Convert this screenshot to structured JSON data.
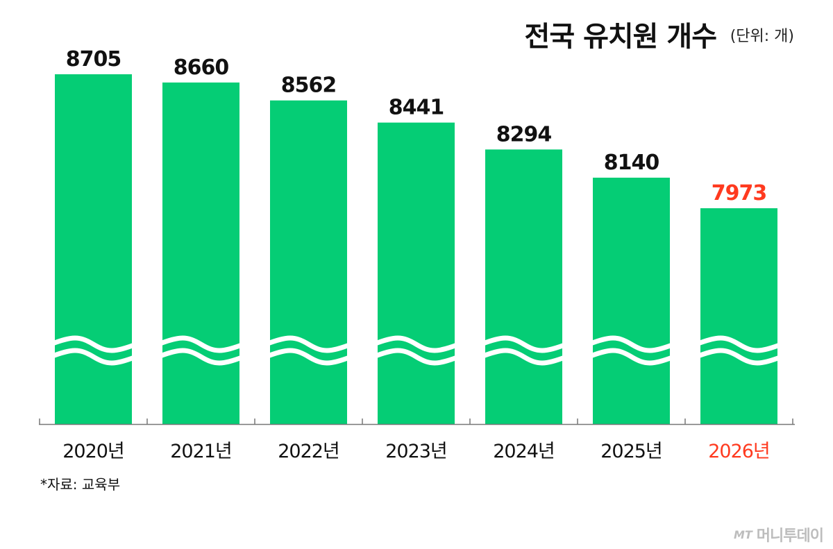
{
  "header": {
    "title": "전국 유치원 개수",
    "unit": "(단위: 개)"
  },
  "footer": {
    "source": "*자료: 교육부",
    "logo_mark": "MT",
    "logo_text": "머니투데이"
  },
  "colors": {
    "bar": "#05cd75",
    "highlight": "#ff3a1f",
    "text": "#111111",
    "axis": "#777777"
  },
  "chart_data": {
    "type": "bar",
    "categories": [
      "2020년",
      "2021년",
      "2022년",
      "2023년",
      "2024년",
      "2025년",
      "2026년"
    ],
    "values": [
      8705,
      8660,
      8562,
      8441,
      8294,
      8140,
      7973
    ],
    "highlight_index": 6,
    "axis_break": true,
    "title": "전국 유치원 개수",
    "unit": "(단위: 개)",
    "xlabel": "",
    "ylabel": "",
    "grid": false,
    "legend": "none"
  }
}
